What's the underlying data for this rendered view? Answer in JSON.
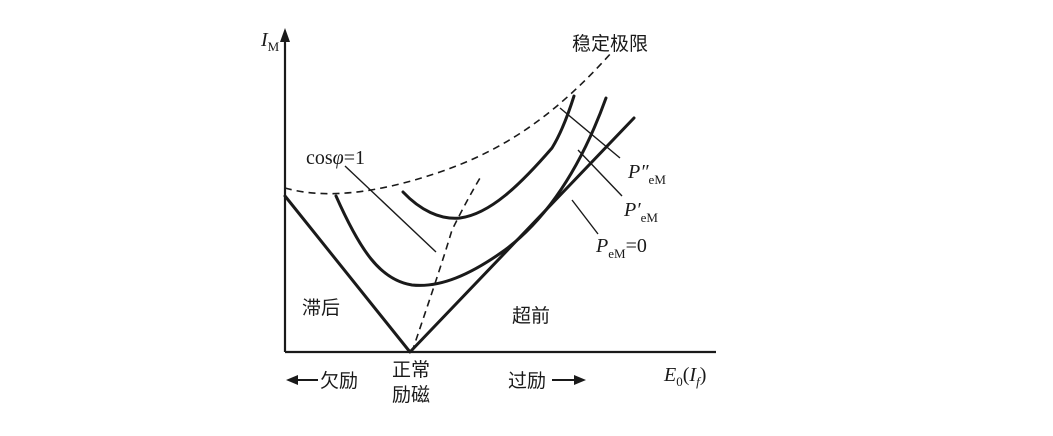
{
  "axes": {
    "y_label_main": "I",
    "y_label_sub": "M",
    "x_label_main": "E",
    "x_label_sub": "0",
    "x_label_paren_open": "(",
    "x_label_paren_var": "I",
    "x_label_paren_sub": "f",
    "x_label_paren_close": ")"
  },
  "labels": {
    "stability_limit": "稳定极限",
    "cos_phi_prefix": "cos",
    "cos_phi_symbol": "φ",
    "cos_phi_suffix": "=1",
    "lagging": "滞后",
    "leading": "超前",
    "under_excitation": "欠励",
    "normal_line1": "正常",
    "normal_line2": "励磁",
    "over_excitation": "过励",
    "p_double_prime_main": "P″",
    "p_double_prime_sub": "eM",
    "p_prime_main": "P′",
    "p_prime_sub": "eM",
    "p_zero_main": "P",
    "p_zero_sub": "eM",
    "p_zero_suffix": "=0"
  },
  "colors": {
    "ink": "#1a1a1a",
    "background": "#ffffff"
  }
}
